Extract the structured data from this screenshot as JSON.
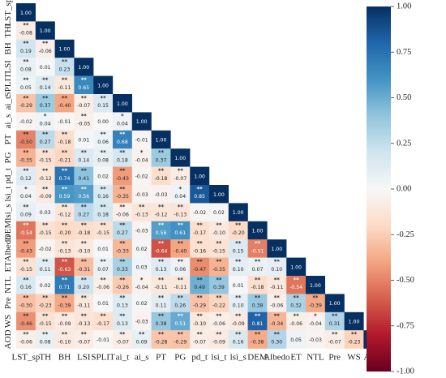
{
  "chart_data": {
    "type": "heatmap",
    "title": "",
    "variables": [
      "LST_sp",
      "THI",
      "BH",
      "LSI",
      "SPLIT",
      "ai_t",
      "ai_s",
      "PT",
      "PG",
      "pd_t",
      "lsi_t",
      "lsi_s",
      "DEM",
      "Albedo",
      "ET",
      "NTL",
      "Pre",
      "WS",
      "AOD"
    ],
    "x_tick_labels": [
      "LST_sp",
      "TH",
      "BH",
      "LSI",
      "SPLIT",
      "ai_t",
      "ai_s",
      "PT",
      "PG",
      "pd_t",
      "lsi_t",
      "lsi_s",
      "DEM",
      "Albedo",
      "ET",
      "NTL",
      "Pre",
      "WS",
      "AOD"
    ],
    "y_tick_labels": [
      "LST_sp",
      "THI",
      "BH",
      "LSI",
      "SPLIT",
      "ai_t",
      "ai_s",
      "PT",
      "PG",
      "pd_t",
      "lsi_t",
      "lsi_s",
      "DEM",
      "Albedo",
      "ET",
      "NTL",
      "Pre",
      "WS",
      "AOD"
    ],
    "rows": [
      {
        "label": "LST_sp",
        "values": [
          "1.00"
        ],
        "sig": [
          ""
        ]
      },
      {
        "label": "THI",
        "values": [
          "-0.08",
          "1.00"
        ],
        "sig": [
          "**",
          ""
        ]
      },
      {
        "label": "BH",
        "values": [
          "0.19",
          "-0.06",
          "1.00"
        ],
        "sig": [
          "**",
          "**",
          ""
        ]
      },
      {
        "label": "LSI",
        "values": [
          "0.08",
          "0.01",
          "0.23",
          "1.00"
        ],
        "sig": [
          "**",
          "",
          "**",
          ""
        ]
      },
      {
        "label": "SPLIT",
        "values": [
          "0.05",
          "0.14",
          "-0.11",
          "0.65",
          "1.00"
        ],
        "sig": [
          "**",
          "**",
          "**",
          "**",
          ""
        ]
      },
      {
        "label": "ai_t",
        "values": [
          "-0.29",
          "0.37",
          "-0.40",
          "-0.07",
          "0.15",
          "1.00"
        ],
        "sig": [
          "**",
          "**",
          "**",
          "**",
          "**",
          ""
        ]
      },
      {
        "label": "ai_s",
        "values": [
          "-0.02",
          "0.04",
          "-0.01",
          "-0.05",
          "0.00",
          "0.04",
          "1.00"
        ],
        "sig": [
          "",
          "*",
          "",
          "**",
          "",
          "*",
          ""
        ]
      },
      {
        "label": "PT",
        "values": [
          "-0.50",
          "0.27",
          "-0.18",
          "0.01",
          "0.06",
          "0.68",
          "-0.01",
          "1.00"
        ],
        "sig": [
          "**",
          "**",
          "**",
          "",
          "**",
          "**",
          "",
          ""
        ]
      },
      {
        "label": "PG",
        "values": [
          "-0.35",
          "-0.15",
          "-0.21",
          "0.14",
          "0.08",
          "0.18",
          "-0.04",
          "0.37",
          "1.00"
        ],
        "sig": [
          "**",
          "**",
          "**",
          "**",
          "**",
          "**",
          "*",
          "**",
          ""
        ]
      },
      {
        "label": "pd_t",
        "values": [
          "0.12",
          "-0.12",
          "0.74",
          "0.41",
          "0.02",
          "-0.43",
          "-0.02",
          "-0.18",
          "-0.07",
          "1.00"
        ],
        "sig": [
          "**",
          "**",
          "**",
          "**",
          "",
          "**",
          "",
          "**",
          "**",
          ""
        ]
      },
      {
        "label": "lsi_t",
        "values": [
          "0.04",
          "-0.09",
          "0.59",
          "0.56",
          "0.16",
          "-0.35",
          "-0.03",
          "-0.03",
          "0.04",
          "0.85",
          "1.00"
        ],
        "sig": [
          "*",
          "**",
          "**",
          "**",
          "**",
          "**",
          "",
          "",
          "*",
          "**",
          ""
        ]
      },
      {
        "label": "lsi_s",
        "values": [
          "0.09",
          "0.03",
          "-0.12",
          "0.27",
          "0.18",
          "-0.06",
          "-0.13",
          "-0.12",
          "-0.13",
          "-0.02",
          "0.02",
          "1.00"
        ],
        "sig": [
          "**",
          "",
          "**",
          "**",
          "**",
          "**",
          "**",
          "**",
          "**",
          "",
          "",
          ""
        ]
      },
      {
        "label": "DEM",
        "values": [
          "-0.54",
          "-0.15",
          "-0.20",
          "-0.18",
          "-0.15",
          "0.27",
          "-0.03",
          "0.56",
          "0.61",
          "-0.17",
          "-0.10",
          "-0.20",
          "1.00"
        ],
        "sig": [
          "**",
          "**",
          "**",
          "**",
          "**",
          "**",
          "",
          "**",
          "**",
          "**",
          "**",
          "**",
          ""
        ]
      },
      {
        "label": "Albedo",
        "values": [
          "-0.43",
          "-0.02",
          "-0.13",
          "-0.10",
          "0.01",
          "-0.33",
          "0.02",
          "-0.64",
          "-0.40",
          "-0.16",
          "-0.15",
          "0.15",
          "-0.51",
          "1.00"
        ],
        "sig": [
          "**",
          "",
          "**",
          "**",
          "",
          "**",
          "",
          "**",
          "**",
          "**",
          "**",
          "**",
          "**",
          ""
        ]
      },
      {
        "label": "ET",
        "values": [
          "-0.15",
          "0.11",
          "-0.63",
          "-0.31",
          "0.07",
          "0.33",
          "0.03",
          "0.13",
          "0.06",
          "-0.47",
          "-0.35",
          "0.10",
          "0.07",
          "0.10",
          "1.00"
        ],
        "sig": [
          "**",
          "**",
          "**",
          "**",
          "**",
          "**",
          "",
          "**",
          "**",
          "**",
          "**",
          "**",
          "**",
          "**",
          ""
        ]
      },
      {
        "label": "NTL",
        "values": [
          "0.16",
          "0.02",
          "0.71",
          "0.20",
          "-0.06",
          "-0.26",
          "-0.04",
          "-0.11",
          "-0.11",
          "0.49",
          "0.39",
          "0.01",
          "-0.18",
          "-0.11",
          "-0.54",
          "1.00"
        ],
        "sig": [
          "**",
          "",
          "**",
          "**",
          "**",
          "**",
          "*",
          "**",
          "**",
          "**",
          "**",
          "",
          "**",
          "**",
          "**",
          ""
        ]
      },
      {
        "label": "Pre",
        "values": [
          "-0.30",
          "-0.23",
          "-0.39",
          "-0.11",
          "0.01",
          "0.13",
          "0.02",
          "0.11",
          "0.26",
          "-0.29",
          "-0.22",
          "0.10",
          "0.38",
          "-0.06",
          "0.32",
          "-0.39",
          "1.00"
        ],
        "sig": [
          "**",
          "**",
          "**",
          "**",
          "",
          "**",
          "",
          "**",
          "**",
          "**",
          "**",
          "**",
          "**",
          "**",
          "**",
          "**",
          ""
        ]
      },
      {
        "label": "WS",
        "values": [
          "-0.46",
          "-0.15",
          "-0.09",
          "-0.13",
          "-0.17",
          "0.13",
          "-0.03",
          "0.38",
          "0.51",
          "-0.10",
          "-0.06",
          "-0.09",
          "0.81",
          "-0.34",
          "-0.06",
          "-0.04",
          "0.31",
          "1.00"
        ],
        "sig": [
          "**",
          "**",
          "**",
          "**",
          "**",
          "**",
          "",
          "**",
          "**",
          "**",
          "**",
          "**",
          "**",
          "**",
          "**",
          "*",
          "**",
          ""
        ]
      },
      {
        "label": "AOD",
        "values": [
          "-0.06",
          "0.08",
          "-0.10",
          "-0.07",
          "-0.01",
          "-0.07",
          "0.09",
          "-0.28",
          "-0.29",
          "-0.07",
          "-0.09",
          "0.16",
          "-0.38",
          "0.30",
          "0.05",
          "-0.03",
          "-0.07",
          "-0.23",
          "1.00"
        ],
        "sig": [
          "**",
          "**",
          "**",
          "**",
          "",
          "**",
          "**",
          "**",
          "**",
          "**",
          "**",
          "**",
          "**",
          "**",
          "",
          "",
          "**",
          "**",
          ""
        ]
      }
    ],
    "colorbar": {
      "range": [
        -1.0,
        1.0
      ],
      "ticks": [
        "1.00",
        "0.75",
        "0.50",
        "0.25",
        "0.00",
        "-0.25",
        "-0.50",
        "-0.75",
        "-1.00"
      ],
      "colormap": "RdBu",
      "low_color": "#67001f",
      "mid_color": "#f7f7f7",
      "high_color": "#053061"
    },
    "grid": false,
    "layout": "lower-triangle"
  }
}
